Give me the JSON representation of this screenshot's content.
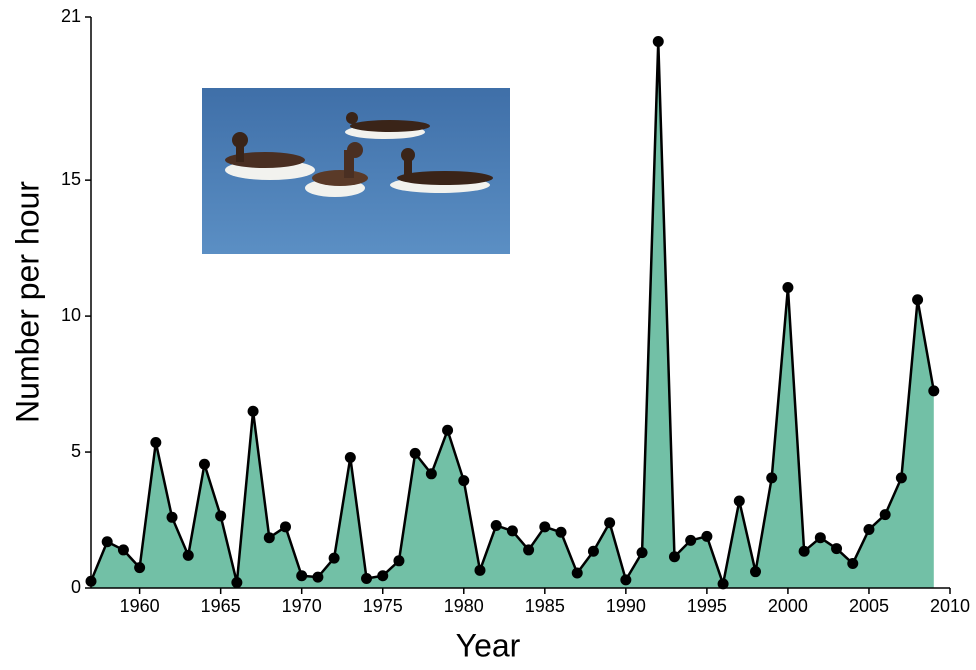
{
  "chart_data": {
    "type": "area",
    "x_label": "Year",
    "y_label": "Number per hour",
    "x": [
      1957,
      1958,
      1959,
      1960,
      1961,
      1962,
      1963,
      1964,
      1965,
      1966,
      1967,
      1968,
      1969,
      1970,
      1971,
      1972,
      1973,
      1974,
      1975,
      1976,
      1977,
      1978,
      1979,
      1980,
      1981,
      1982,
      1983,
      1984,
      1985,
      1986,
      1987,
      1988,
      1989,
      1990,
      1991,
      1992,
      1993,
      1994,
      1995,
      1996,
      1997,
      1998,
      1999,
      2000,
      2001,
      2002,
      2003,
      2004,
      2005,
      2006,
      2007,
      2008,
      2009
    ],
    "values": [
      0.25,
      1.7,
      1.4,
      0.75,
      5.35,
      2.6,
      1.2,
      4.55,
      2.65,
      0.2,
      6.5,
      1.85,
      2.25,
      0.45,
      0.4,
      1.1,
      4.8,
      0.35,
      0.45,
      1.0,
      4.95,
      4.2,
      5.8,
      3.95,
      0.65,
      2.3,
      2.1,
      1.4,
      2.25,
      2.05,
      0.55,
      1.35,
      2.4,
      0.3,
      1.3,
      20.1,
      1.15,
      1.75,
      1.9,
      0.15,
      3.2,
      0.6,
      4.05,
      11.05,
      1.35,
      1.85,
      1.45,
      0.9,
      2.15,
      2.7,
      4.05,
      10.6,
      7.25
    ],
    "color": "#72c0a6",
    "line_color": "#000000",
    "xlim": [
      1957,
      2010
    ],
    "xticks": [
      1960,
      1965,
      1970,
      1975,
      1980,
      1985,
      1990,
      1995,
      2000,
      2005,
      2010
    ],
    "ylim": [
      0,
      21
    ],
    "yticks": [
      0,
      5,
      10,
      15,
      21
    ]
  }
}
